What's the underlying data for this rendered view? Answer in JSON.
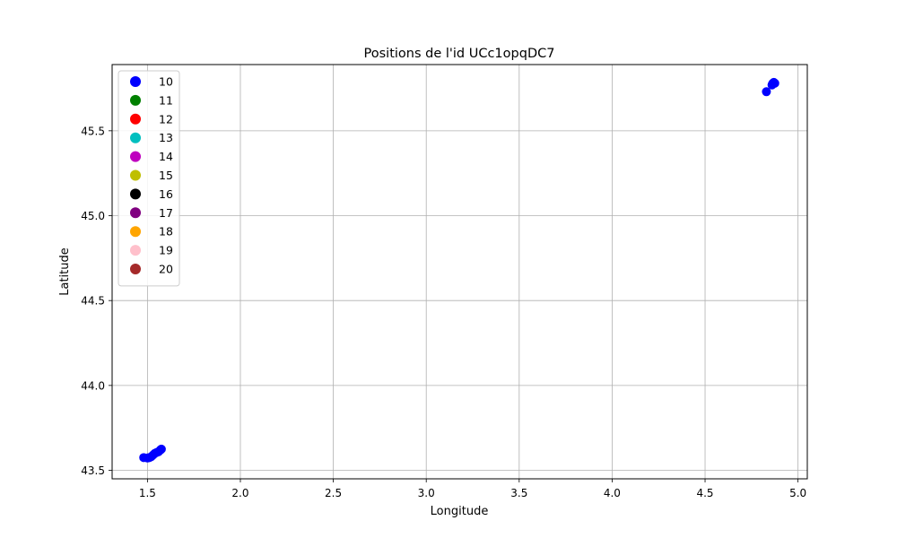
{
  "chart_data": {
    "type": "scatter",
    "title": "Positions de l'id UCc1opqDC7",
    "xlabel": "Longitude",
    "ylabel": "Latitude",
    "xlim": [
      1.31,
      5.05
    ],
    "ylim": [
      43.45,
      45.89
    ],
    "xticks": [
      1.5,
      2.0,
      2.5,
      3.0,
      3.5,
      4.0,
      4.5,
      5.0
    ],
    "xtick_labels": [
      "1.5",
      "2.0",
      "2.5",
      "3.0",
      "3.5",
      "4.0",
      "4.5",
      "5.0"
    ],
    "yticks": [
      43.5,
      44.0,
      44.5,
      45.0,
      45.5
    ],
    "ytick_labels": [
      "43.5",
      "44.0",
      "44.5",
      "45.0",
      "45.5"
    ],
    "grid": true,
    "legend_position": "upper-left",
    "series": [
      {
        "name": "10",
        "color": "#0000ff",
        "x": [
          1.48,
          1.5,
          1.51,
          1.52,
          1.53,
          1.54,
          1.55,
          1.56,
          1.57,
          1.575,
          4.83,
          4.86,
          4.865,
          4.87,
          4.875
        ],
        "y": [
          43.575,
          43.573,
          43.575,
          43.58,
          43.59,
          43.6,
          43.605,
          43.61,
          43.62,
          43.625,
          45.73,
          45.77,
          45.78,
          45.785,
          45.78
        ]
      },
      {
        "name": "11",
        "color": "#008000",
        "x": [],
        "y": []
      },
      {
        "name": "12",
        "color": "#ff0000",
        "x": [],
        "y": []
      },
      {
        "name": "13",
        "color": "#00bfbf",
        "x": [],
        "y": []
      },
      {
        "name": "14",
        "color": "#bf00bf",
        "x": [],
        "y": []
      },
      {
        "name": "15",
        "color": "#bfbf00",
        "x": [],
        "y": []
      },
      {
        "name": "16",
        "color": "#000000",
        "x": [],
        "y": []
      },
      {
        "name": "17",
        "color": "#800080",
        "x": [],
        "y": []
      },
      {
        "name": "18",
        "color": "#ffa500",
        "x": [],
        "y": []
      },
      {
        "name": "19",
        "color": "#ffc0cb",
        "x": [],
        "y": []
      },
      {
        "name": "20",
        "color": "#a52a2a",
        "x": [],
        "y": []
      }
    ]
  }
}
